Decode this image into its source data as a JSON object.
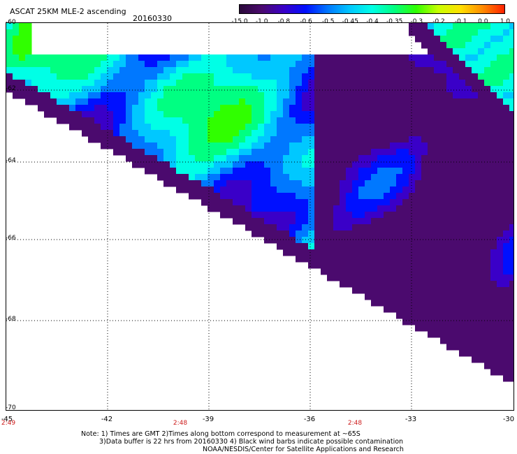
{
  "header": {
    "title": "ASCAT 25KM MLE-2 ascending",
    "date": "20160330"
  },
  "colorbar": {
    "labels": [
      "-15.0",
      "-1.0",
      "-0.8",
      "-0.6",
      "-0.5",
      "-0.45",
      "-0.4",
      "-0.35",
      "-0.3",
      "-0.2",
      "-0.1",
      "0.0",
      "1.0"
    ],
    "colors": [
      "#2a0a3a",
      "#4b0a6e",
      "#3a00c8",
      "#0010ff",
      "#0078ff",
      "#00c8ff",
      "#00ffe6",
      "#00ff82",
      "#30ff00",
      "#c8ff00",
      "#ffe000",
      "#ff8c00",
      "#ff2000"
    ]
  },
  "map": {
    "lat_labels": [
      "-60",
      "-62",
      "-64",
      "-66",
      "-68",
      "-70"
    ],
    "lon_labels": [
      "-45",
      "-42",
      "-39",
      "-36",
      "-33",
      "-30"
    ],
    "lat_range": [
      -70,
      -60
    ],
    "lon_range": [
      -45,
      -30
    ],
    "gridlines": true
  },
  "times": [
    "2:49",
    "2:48",
    "2:48"
  ],
  "notes": {
    "line1": "Note: 1) Times are GMT 2)Times along bottom correspond to measurement at ~65S",
    "line2": "3)Data buffer is 22 hrs from 20160330 4) Black wind barbs indicate possible contamination",
    "line3": "NOAA/NESDIS/Center for Satellite Applications and Research"
  }
}
